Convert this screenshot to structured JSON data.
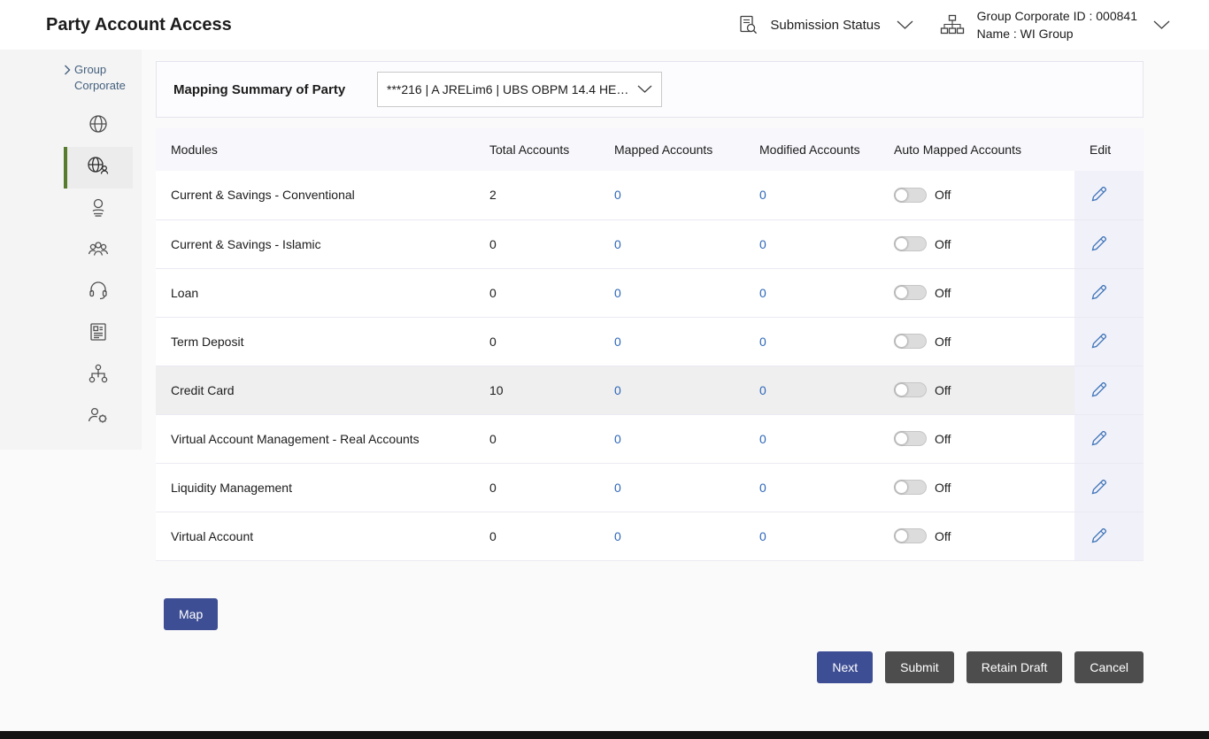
{
  "header": {
    "title": "Party Account Access",
    "submission_status_label": "Submission Status",
    "group_corporate_id": "Group Corporate ID : 000841",
    "group_corporate_name": "Name : WI Group"
  },
  "sidebar": {
    "breadcrumb": "Group Corporate",
    "selected_index": 1,
    "icons": [
      "globe-icon",
      "party-account-access-icon",
      "user-profile-icon",
      "user-group-icon",
      "support-icon",
      "report-icon",
      "workflow-icon",
      "user-settings-icon"
    ]
  },
  "mapping_summary": {
    "label": "Mapping Summary of Party",
    "party_dropdown_value": "***216 | A JRELim6 | UBS OBPM 14.4 HE…"
  },
  "table": {
    "columns": [
      "Modules",
      "Total Accounts",
      "Mapped Accounts",
      "Modified Accounts",
      "Auto Mapped Accounts",
      "Edit"
    ],
    "rows": [
      {
        "module": "Current & Savings - Conventional",
        "total": "2",
        "mapped": "0",
        "modified": "0",
        "auto_mapped": "Off",
        "highlighted": false
      },
      {
        "module": "Current & Savings - Islamic",
        "total": "0",
        "mapped": "0",
        "modified": "0",
        "auto_mapped": "Off",
        "highlighted": false
      },
      {
        "module": "Loan",
        "total": "0",
        "mapped": "0",
        "modified": "0",
        "auto_mapped": "Off",
        "highlighted": false
      },
      {
        "module": "Term Deposit",
        "total": "0",
        "mapped": "0",
        "modified": "0",
        "auto_mapped": "Off",
        "highlighted": false
      },
      {
        "module": "Credit Card",
        "total": "10",
        "mapped": "0",
        "modified": "0",
        "auto_mapped": "Off",
        "highlighted": true
      },
      {
        "module": "Virtual Account Management - Real Accounts",
        "total": "0",
        "mapped": "0",
        "modified": "0",
        "auto_mapped": "Off",
        "highlighted": false
      },
      {
        "module": "Liquidity Management",
        "total": "0",
        "mapped": "0",
        "modified": "0",
        "auto_mapped": "Off",
        "highlighted": false
      },
      {
        "module": "Virtual Account",
        "total": "0",
        "mapped": "0",
        "modified": "0",
        "auto_mapped": "Off",
        "highlighted": false
      }
    ]
  },
  "buttons": {
    "map": "Map",
    "next": "Next",
    "submit": "Submit",
    "retain_draft": "Retain Draft",
    "cancel": "Cancel"
  },
  "colors": {
    "primary_button": "#3d4e94",
    "dark_button": "#4d4d4d",
    "link": "#2d66b8",
    "accent_green": "#567d2e",
    "header_row_bg": "#f7f7fc",
    "edit_column_bg": "#f1f1f9",
    "highlight_row_bg": "#efefef"
  }
}
